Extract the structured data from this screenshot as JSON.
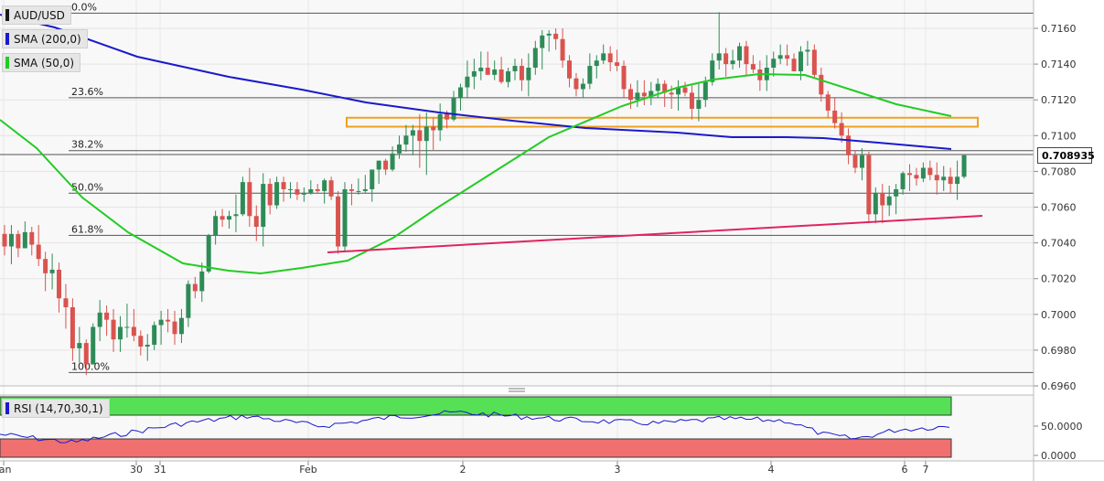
{
  "symbol": "AUD/USD",
  "indicators": [
    {
      "label": "SMA (200,0)",
      "color": "#1a1acc"
    },
    {
      "label": "SMA (50,0)",
      "color": "#22cc22"
    }
  ],
  "rsi_label": "RSI (14,70,30,1)",
  "last_price": "0.708935",
  "colors": {
    "bull": "#2e8b57",
    "bear": "#d9534f",
    "sma200": "#1a1acc",
    "sma50": "#22cc22",
    "trend": "#e0245e",
    "zone": "#f0a020",
    "rsi": "#1a1acc",
    "rsi_over": "#55e055",
    "rsi_under": "#f07070"
  },
  "chart_data": {
    "type": "candlestick",
    "title": "",
    "ylim": [
      0.696,
      0.717
    ],
    "y_ticks": [
      "0.7160",
      "0.7140",
      "0.7120",
      "0.7100",
      "0.7080",
      "0.7060",
      "0.7040",
      "0.7020",
      "0.7000",
      "0.6980",
      "0.6960"
    ],
    "x_ticks": [
      "Jan",
      "30",
      "31",
      "Feb",
      "2",
      "3",
      "4",
      "6",
      "7"
    ],
    "fib_levels": [
      {
        "label": "0.0%",
        "value": 0.71685
      },
      {
        "label": "23.6%",
        "value": 0.71212
      },
      {
        "label": "38.2%",
        "value": 0.70916
      },
      {
        "label": "50.0%",
        "value": 0.70678
      },
      {
        "label": "61.8%",
        "value": 0.70442
      },
      {
        "label": "100.0%",
        "value": 0.69675
      }
    ],
    "resistance_zone": [
      0.7105,
      0.711
    ],
    "rsi_ticks": [
      "50.0000",
      "0.0000"
    ],
    "candles": [
      [
        0.7045,
        0.705,
        0.7033,
        0.7038
      ],
      [
        0.7038,
        0.705,
        0.7028,
        0.7045
      ],
      [
        0.7045,
        0.7047,
        0.7032,
        0.7037
      ],
      [
        0.7037,
        0.7052,
        0.7037,
        0.7046
      ],
      [
        0.7046,
        0.7049,
        0.7033,
        0.7039
      ],
      [
        0.7039,
        0.705,
        0.7027,
        0.7031
      ],
      [
        0.7031,
        0.7035,
        0.7013,
        0.7023
      ],
      [
        0.7023,
        0.7034,
        0.7014,
        0.7025
      ],
      [
        0.7025,
        0.7029,
        0.7001,
        0.7009
      ],
      [
        0.7009,
        0.7017,
        0.6992,
        0.7004
      ],
      [
        0.7004,
        0.7009,
        0.6974,
        0.6981
      ],
      [
        0.6981,
        0.6993,
        0.6973,
        0.6984
      ],
      [
        0.6984,
        0.6986,
        0.6966,
        0.6972
      ],
      [
        0.6972,
        0.6995,
        0.6972,
        0.6993
      ],
      [
        0.6993,
        0.7008,
        0.6985,
        0.7001
      ],
      [
        0.7001,
        0.7005,
        0.6988,
        0.6997
      ],
      [
        0.6997,
        0.7003,
        0.6979,
        0.6986
      ],
      [
        0.6986,
        0.6999,
        0.6979,
        0.6993
      ],
      [
        0.6993,
        0.7006,
        0.6987,
        0.6993
      ],
      [
        0.6993,
        0.7003,
        0.6985,
        0.6988
      ],
      [
        0.6988,
        0.6991,
        0.6977,
        0.6982
      ],
      [
        0.6982,
        0.6989,
        0.6974,
        0.6983
      ],
      [
        0.6983,
        0.6996,
        0.698,
        0.6994
      ],
      [
        0.6994,
        0.7002,
        0.6983,
        0.6997
      ],
      [
        0.6997,
        0.7003,
        0.699,
        0.6996
      ],
      [
        0.6996,
        0.7002,
        0.6983,
        0.6989
      ],
      [
        0.6989,
        0.7003,
        0.6984,
        0.6998
      ],
      [
        0.6998,
        0.7019,
        0.6993,
        0.7017
      ],
      [
        0.7017,
        0.7021,
        0.7009,
        0.7013
      ],
      [
        0.7013,
        0.7029,
        0.7007,
        0.7024
      ],
      [
        0.7024,
        0.7045,
        0.7023,
        0.7044
      ],
      [
        0.7044,
        0.7058,
        0.7039,
        0.7055
      ],
      [
        0.7055,
        0.7059,
        0.7049,
        0.7053
      ],
      [
        0.7053,
        0.7058,
        0.7048,
        0.7055
      ],
      [
        0.7055,
        0.7067,
        0.7046,
        0.7056
      ],
      [
        0.7056,
        0.7077,
        0.7055,
        0.7074
      ],
      [
        0.7074,
        0.7082,
        0.7049,
        0.7055
      ],
      [
        0.7055,
        0.7061,
        0.7041,
        0.7049
      ],
      [
        0.7049,
        0.7079,
        0.7038,
        0.7073
      ],
      [
        0.7073,
        0.7076,
        0.7056,
        0.7061
      ],
      [
        0.7061,
        0.7077,
        0.7059,
        0.7074
      ],
      [
        0.7074,
        0.7077,
        0.7063,
        0.707
      ],
      [
        0.707,
        0.7074,
        0.7065,
        0.707
      ],
      [
        0.707,
        0.7074,
        0.7064,
        0.7067
      ],
      [
        0.7067,
        0.7071,
        0.7063,
        0.7068
      ],
      [
        0.7068,
        0.7075,
        0.7067,
        0.707
      ],
      [
        0.707,
        0.7073,
        0.7068,
        0.7069
      ],
      [
        0.7069,
        0.7076,
        0.7062,
        0.7075
      ],
      [
        0.7075,
        0.7077,
        0.7064,
        0.7066
      ],
      [
        0.7066,
        0.7069,
        0.7034,
        0.7038
      ],
      [
        0.7038,
        0.7074,
        0.7035,
        0.707
      ],
      [
        0.707,
        0.7073,
        0.7061,
        0.7069
      ],
      [
        0.7069,
        0.7076,
        0.7067,
        0.7069
      ],
      [
        0.7069,
        0.7078,
        0.7068,
        0.707
      ],
      [
        0.707,
        0.7081,
        0.7063,
        0.7081
      ],
      [
        0.7081,
        0.7086,
        0.7073,
        0.7086
      ],
      [
        0.7086,
        0.7087,
        0.7078,
        0.7081
      ],
      [
        0.7081,
        0.7094,
        0.708,
        0.709
      ],
      [
        0.709,
        0.71,
        0.7087,
        0.7095
      ],
      [
        0.7095,
        0.7106,
        0.7091,
        0.71
      ],
      [
        0.71,
        0.7106,
        0.7089,
        0.7103
      ],
      [
        0.7103,
        0.7112,
        0.7082,
        0.7097
      ],
      [
        0.7097,
        0.7113,
        0.7078,
        0.7105
      ],
      [
        0.7105,
        0.711,
        0.7092,
        0.7103
      ],
      [
        0.7103,
        0.7118,
        0.7097,
        0.7112
      ],
      [
        0.7112,
        0.7114,
        0.7104,
        0.7109
      ],
      [
        0.7109,
        0.7125,
        0.7108,
        0.7121
      ],
      [
        0.7121,
        0.7129,
        0.7114,
        0.7127
      ],
      [
        0.7127,
        0.7142,
        0.7121,
        0.7133
      ],
      [
        0.7133,
        0.7143,
        0.7126,
        0.7136
      ],
      [
        0.7136,
        0.7147,
        0.7131,
        0.7138
      ],
      [
        0.7138,
        0.7147,
        0.7135,
        0.7134
      ],
      [
        0.7134,
        0.7142,
        0.7131,
        0.7137
      ],
      [
        0.7137,
        0.7144,
        0.7129,
        0.713
      ],
      [
        0.713,
        0.7138,
        0.7127,
        0.7136
      ],
      [
        0.7136,
        0.7143,
        0.7131,
        0.7139
      ],
      [
        0.7139,
        0.7143,
        0.7125,
        0.7131
      ],
      [
        0.7131,
        0.7146,
        0.7122,
        0.7138
      ],
      [
        0.7138,
        0.7153,
        0.7134,
        0.7149
      ],
      [
        0.7149,
        0.7159,
        0.7137,
        0.7156
      ],
      [
        0.7156,
        0.7159,
        0.7147,
        0.7157
      ],
      [
        0.7157,
        0.716,
        0.7148,
        0.7154
      ],
      [
        0.7154,
        0.716,
        0.7138,
        0.7142
      ],
      [
        0.7142,
        0.7145,
        0.7127,
        0.7132
      ],
      [
        0.7132,
        0.7135,
        0.7122,
        0.7126
      ],
      [
        0.7126,
        0.7132,
        0.7121,
        0.7129
      ],
      [
        0.7129,
        0.7146,
        0.7126,
        0.7139
      ],
      [
        0.7139,
        0.7145,
        0.7132,
        0.7142
      ],
      [
        0.7142,
        0.7151,
        0.714,
        0.7146
      ],
      [
        0.7146,
        0.715,
        0.7136,
        0.7141
      ],
      [
        0.7141,
        0.7148,
        0.7136,
        0.7139
      ],
      [
        0.7139,
        0.7142,
        0.7121,
        0.7126
      ],
      [
        0.7126,
        0.7129,
        0.7115,
        0.712
      ],
      [
        0.712,
        0.7131,
        0.7116,
        0.7124
      ],
      [
        0.7124,
        0.7131,
        0.7117,
        0.7122
      ],
      [
        0.7122,
        0.713,
        0.7117,
        0.7125
      ],
      [
        0.7125,
        0.7132,
        0.7121,
        0.7129
      ],
      [
        0.7129,
        0.7131,
        0.7116,
        0.7124
      ],
      [
        0.7124,
        0.7128,
        0.7115,
        0.7123
      ],
      [
        0.7123,
        0.7131,
        0.7114,
        0.7127
      ],
      [
        0.7127,
        0.713,
        0.7122,
        0.7124
      ],
      [
        0.7124,
        0.7128,
        0.7109,
        0.7115
      ],
      [
        0.7115,
        0.7129,
        0.7108,
        0.712
      ],
      [
        0.712,
        0.7133,
        0.7116,
        0.713
      ],
      [
        0.713,
        0.7146,
        0.7128,
        0.7142
      ],
      [
        0.7142,
        0.7169,
        0.7137,
        0.7146
      ],
      [
        0.7146,
        0.7149,
        0.7133,
        0.714
      ],
      [
        0.714,
        0.7148,
        0.7137,
        0.7142
      ],
      [
        0.7142,
        0.7152,
        0.7138,
        0.715
      ],
      [
        0.715,
        0.7153,
        0.7134,
        0.714
      ],
      [
        0.714,
        0.7145,
        0.7135,
        0.7137
      ],
      [
        0.7137,
        0.7142,
        0.7125,
        0.7131
      ],
      [
        0.7131,
        0.7145,
        0.7125,
        0.7138
      ],
      [
        0.7138,
        0.7147,
        0.7133,
        0.7143
      ],
      [
        0.7143,
        0.7151,
        0.714,
        0.7145
      ],
      [
        0.7145,
        0.7151,
        0.7139,
        0.7143
      ],
      [
        0.7143,
        0.7146,
        0.7136,
        0.7136
      ],
      [
        0.7136,
        0.715,
        0.7131,
        0.7147
      ],
      [
        0.7147,
        0.7153,
        0.7139,
        0.7148
      ],
      [
        0.7148,
        0.7151,
        0.7132,
        0.7134
      ],
      [
        0.7134,
        0.7138,
        0.7119,
        0.7123
      ],
      [
        0.7123,
        0.7125,
        0.711,
        0.7114
      ],
      [
        0.7114,
        0.7121,
        0.7104,
        0.7107
      ],
      [
        0.7107,
        0.7113,
        0.7096,
        0.71
      ],
      [
        0.71,
        0.7104,
        0.7084,
        0.7089
      ],
      [
        0.7089,
        0.7092,
        0.7079,
        0.7082
      ],
      [
        0.7082,
        0.7093,
        0.7075,
        0.7089
      ],
      [
        0.7089,
        0.7091,
        0.7051,
        0.7056
      ],
      [
        0.7056,
        0.7071,
        0.7051,
        0.7068
      ],
      [
        0.7068,
        0.7073,
        0.7051,
        0.7061
      ],
      [
        0.7061,
        0.7072,
        0.7055,
        0.7066
      ],
      [
        0.7066,
        0.7073,
        0.7056,
        0.707
      ],
      [
        0.707,
        0.708,
        0.7067,
        0.7079
      ],
      [
        0.7079,
        0.7084,
        0.7069,
        0.7078
      ],
      [
        0.7078,
        0.7082,
        0.7072,
        0.7076
      ],
      [
        0.7076,
        0.7085,
        0.7074,
        0.7082
      ],
      [
        0.7082,
        0.7086,
        0.7075,
        0.7078
      ],
      [
        0.7078,
        0.7085,
        0.7067,
        0.7075
      ],
      [
        0.7075,
        0.7083,
        0.7069,
        0.7077
      ],
      [
        0.7077,
        0.7082,
        0.7068,
        0.7073
      ],
      [
        0.7073,
        0.7086,
        0.7064,
        0.7077
      ],
      [
        0.7077,
        0.7089,
        0.7076,
        0.7089
      ]
    ]
  }
}
